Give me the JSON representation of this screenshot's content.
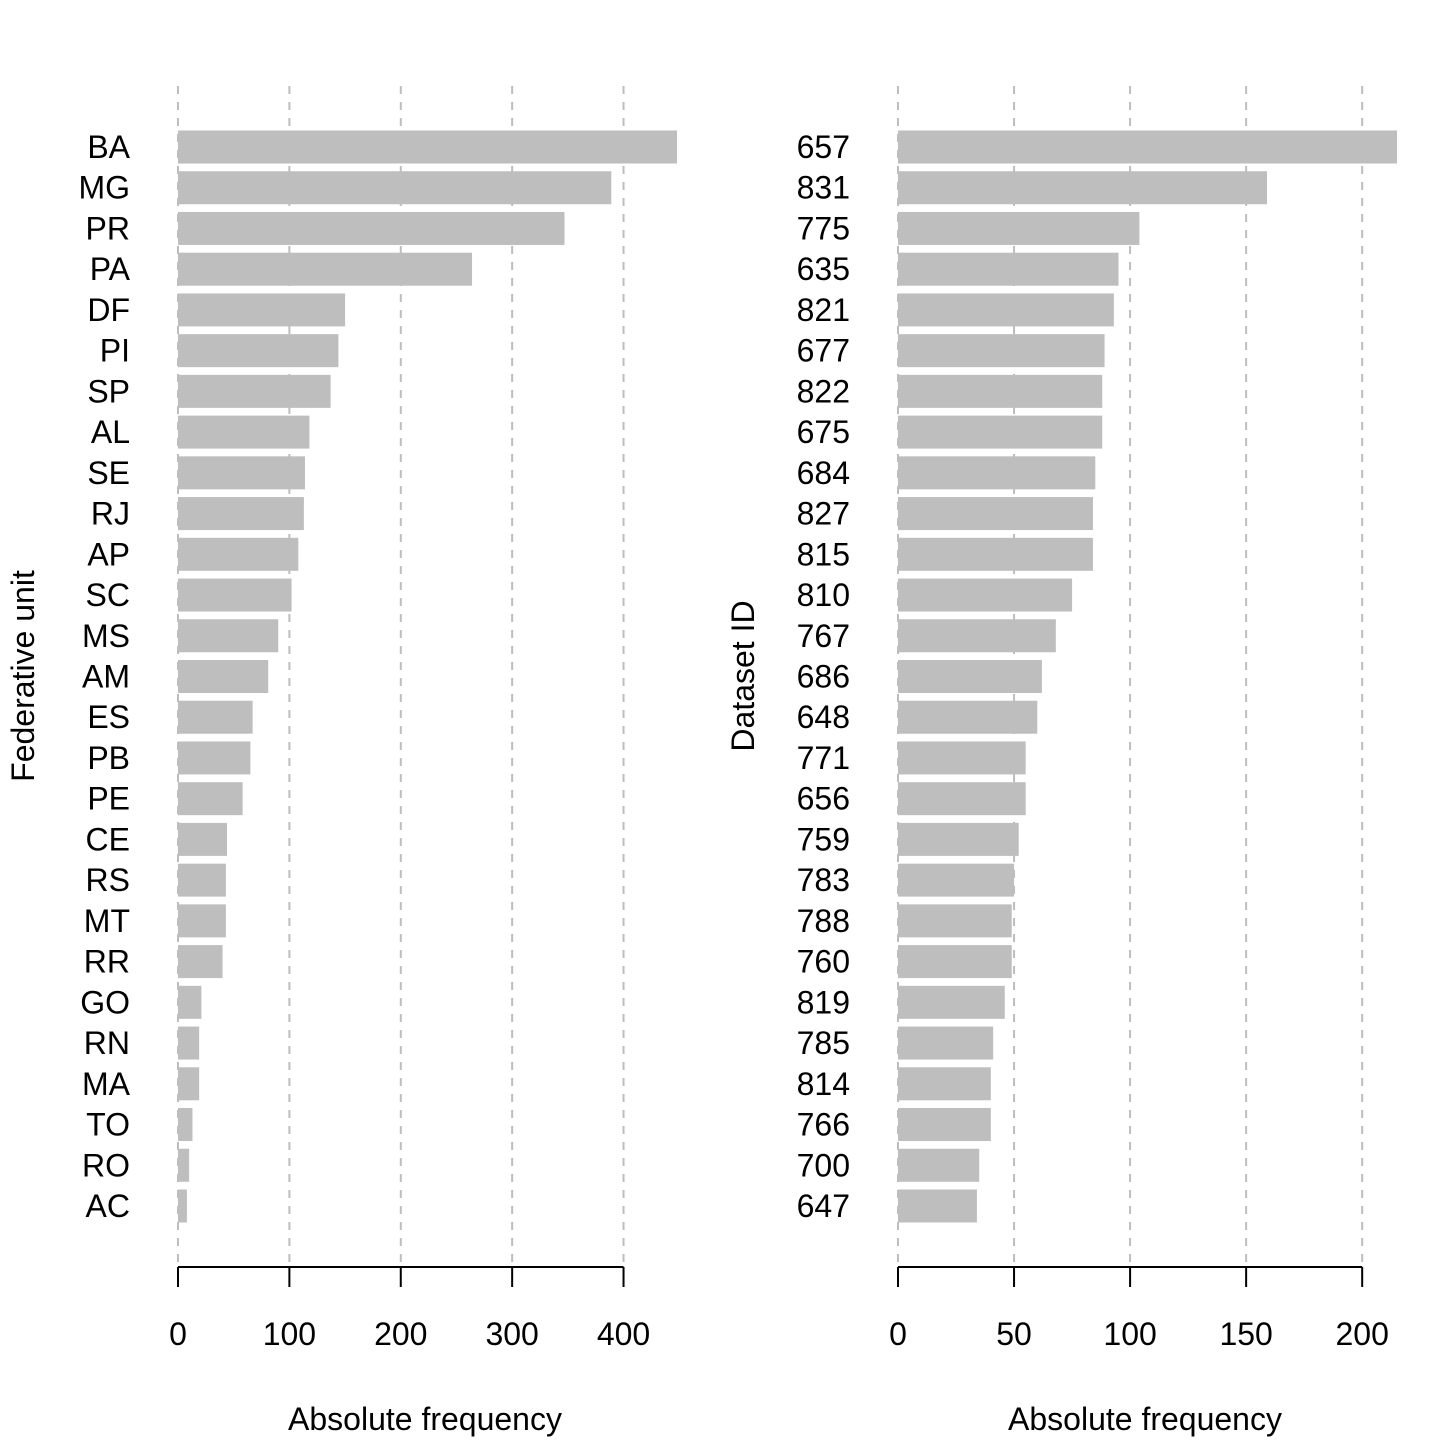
{
  "chart_data": [
    {
      "type": "bar",
      "orientation": "horizontal",
      "categories": [
        "BA",
        "MG",
        "PR",
        "PA",
        "DF",
        "PI",
        "SP",
        "AL",
        "SE",
        "RJ",
        "AP",
        "SC",
        "MS",
        "AM",
        "ES",
        "PB",
        "PE",
        "CE",
        "RS",
        "MT",
        "RR",
        "GO",
        "RN",
        "MA",
        "TO",
        "RO",
        "AC"
      ],
      "values": [
        448,
        389,
        347,
        264,
        150,
        144,
        137,
        118,
        114,
        113,
        108,
        102,
        90,
        81,
        67,
        65,
        58,
        44,
        43,
        43,
        40,
        21,
        19,
        19,
        13,
        10,
        8
      ],
      "xlabel": "Absolute frequency",
      "ylabel": "Federative unit",
      "xticks": [
        0,
        100,
        200,
        300,
        400
      ],
      "xlim": [
        0,
        448
      ],
      "grid": "vertical dashed",
      "bar_color": "#bebebe"
    },
    {
      "type": "bar",
      "orientation": "horizontal",
      "categories": [
        "657",
        "831",
        "775",
        "635",
        "821",
        "677",
        "822",
        "675",
        "684",
        "827",
        "815",
        "810",
        "767",
        "686",
        "648",
        "771",
        "656",
        "759",
        "783",
        "788",
        "760",
        "819",
        "785",
        "814",
        "766",
        "700",
        "647"
      ],
      "values": [
        215,
        159,
        104,
        95,
        93,
        89,
        88,
        88,
        85,
        84,
        84,
        75,
        68,
        62,
        60,
        55,
        55,
        52,
        50,
        49,
        49,
        46,
        41,
        40,
        40,
        35,
        34
      ],
      "xlabel": "Absolute frequency",
      "ylabel": "Dataset ID",
      "xticks": [
        0,
        50,
        100,
        150,
        200
      ],
      "xlim": [
        0,
        215
      ],
      "grid": "vertical dashed",
      "bar_color": "#bebebe"
    }
  ]
}
